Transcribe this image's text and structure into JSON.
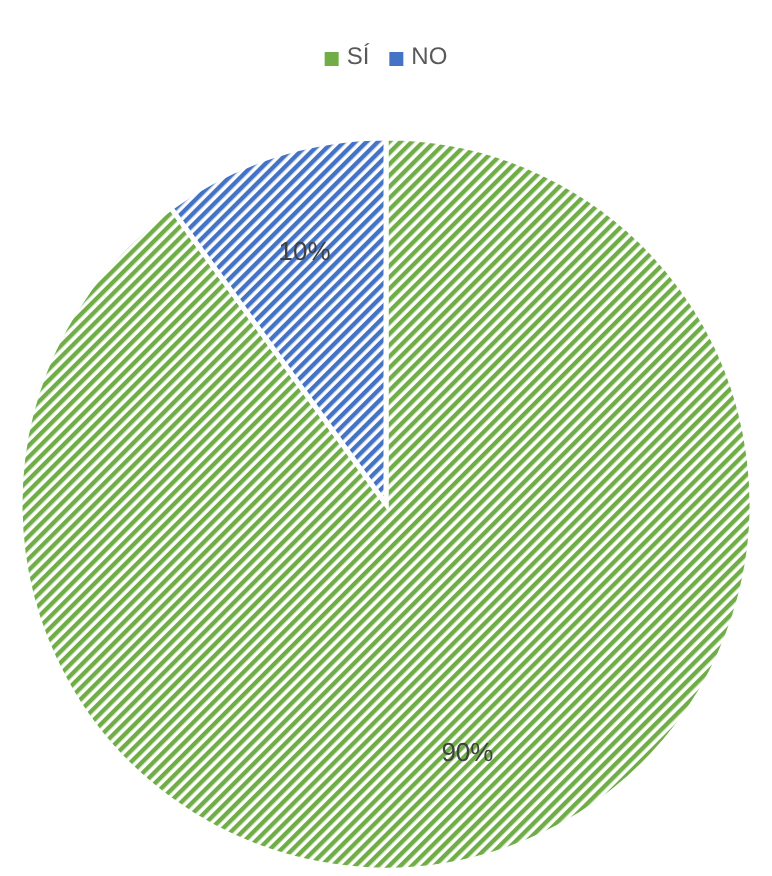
{
  "chart_data": {
    "type": "pie",
    "categories": [
      "SÍ",
      "NO"
    ],
    "values": [
      90,
      10
    ],
    "colors": [
      "#70ad47",
      "#4472c4"
    ],
    "value_labels": [
      "90%",
      "10%"
    ],
    "legend": "top"
  }
}
